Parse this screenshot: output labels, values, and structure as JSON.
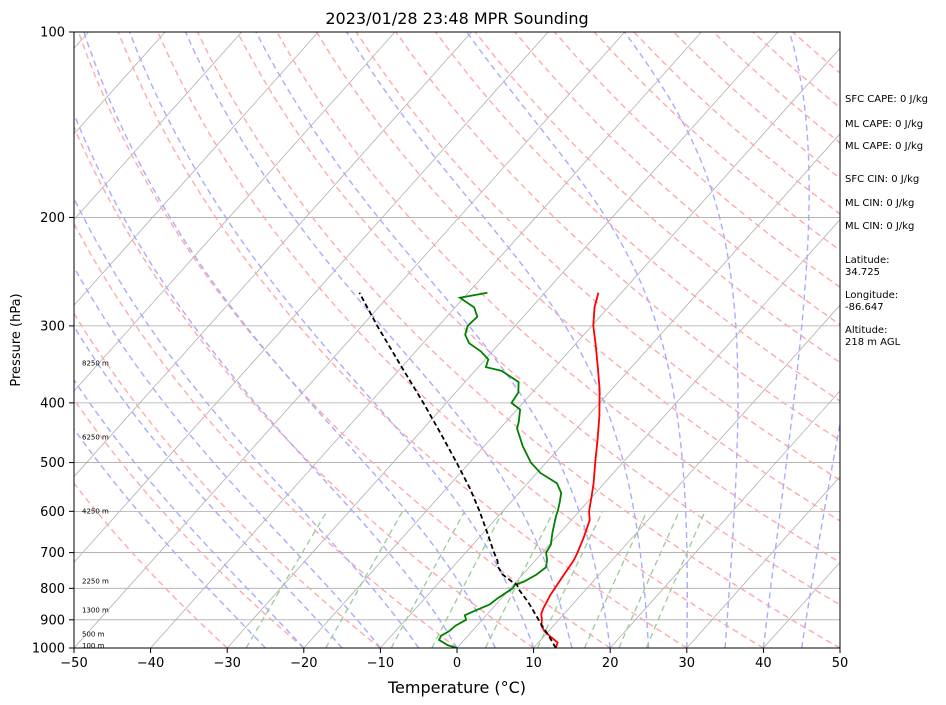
{
  "chart_data": {
    "type": "line",
    "subtype": "skew-t log-p sounding",
    "title": "2023/01/28 23:48 MPR Sounding",
    "xlabel": "Temperature (°C)",
    "ylabel": "Pressure (hPa)",
    "xlim": [
      -50,
      50
    ],
    "ylim": [
      1000,
      100
    ],
    "y_scale": "log",
    "x_ticks": [
      "−50",
      "−40",
      "−30",
      "−20",
      "−10",
      "0",
      "10",
      "20",
      "30",
      "40",
      "50"
    ],
    "y_ticks": [
      "100",
      "200",
      "300",
      "400",
      "500",
      "600",
      "700",
      "800",
      "900",
      "1000"
    ],
    "height_labels": [
      {
        "label": "100 m",
        "p": 993
      },
      {
        "label": "500 m",
        "p": 950
      },
      {
        "label": "1300 m",
        "p": 870
      },
      {
        "label": "2250 m",
        "p": 780
      },
      {
        "label": "4250 m",
        "p": 600
      },
      {
        "label": "6250 m",
        "p": 455
      },
      {
        "label": "8250 m",
        "p": 345
      }
    ],
    "series": [
      {
        "color": "#ff0000",
        "points": [
          [
            1000,
            12.9
          ],
          [
            980,
            12.5
          ],
          [
            960,
            11.0
          ],
          [
            940,
            9.5
          ],
          [
            920,
            8.4
          ],
          [
            900,
            7.8
          ],
          [
            880,
            7.0
          ],
          [
            860,
            6.6
          ],
          [
            840,
            6.3
          ],
          [
            820,
            6.0
          ],
          [
            800,
            5.8
          ],
          [
            760,
            5.4
          ],
          [
            720,
            5.0
          ],
          [
            700,
            4.6
          ],
          [
            660,
            3.6
          ],
          [
            620,
            2.4
          ],
          [
            600,
            1.3
          ],
          [
            570,
            0
          ],
          [
            540,
            -1.4
          ],
          [
            500,
            -3.6
          ],
          [
            460,
            -5.9
          ],
          [
            420,
            -8.5
          ],
          [
            380,
            -11.6
          ],
          [
            350,
            -14.4
          ],
          [
            320,
            -17.5
          ],
          [
            300,
            -19.8
          ],
          [
            280,
            -21.8
          ],
          [
            265,
            -23.0
          ]
        ]
      },
      {
        "color": "#008000",
        "points": [
          [
            1000,
            0
          ],
          [
            990,
            -1.5
          ],
          [
            970,
            -3.3
          ],
          [
            955,
            -3.5
          ],
          [
            940,
            -3.0
          ],
          [
            920,
            -2.8
          ],
          [
            900,
            -2.1
          ],
          [
            885,
            -2.8
          ],
          [
            870,
            -2.0
          ],
          [
            850,
            -0.8
          ],
          [
            830,
            -0.5
          ],
          [
            800,
            0.3
          ],
          [
            790,
            0.2
          ],
          [
            780,
            1.0
          ],
          [
            760,
            1.8
          ],
          [
            740,
            2.2
          ],
          [
            720,
            1.5
          ],
          [
            700,
            0.5
          ],
          [
            680,
            0.2
          ],
          [
            650,
            -1.0
          ],
          [
            610,
            -2.5
          ],
          [
            600,
            -2.8
          ],
          [
            580,
            -3.6
          ],
          [
            560,
            -4.5
          ],
          [
            540,
            -6.2
          ],
          [
            520,
            -9.5
          ],
          [
            500,
            -12.0
          ],
          [
            470,
            -15.0
          ],
          [
            440,
            -17.8
          ],
          [
            430,
            -18.3
          ],
          [
            410,
            -19.6
          ],
          [
            400,
            -21.5
          ],
          [
            385,
            -21.8
          ],
          [
            370,
            -23.0
          ],
          [
            355,
            -26.5
          ],
          [
            350,
            -29.0
          ],
          [
            340,
            -29.6
          ],
          [
            330,
            -31.5
          ],
          [
            320,
            -34.0
          ],
          [
            310,
            -35.5
          ],
          [
            300,
            -36.2
          ],
          [
            290,
            -36.0
          ],
          [
            280,
            -37.5
          ],
          [
            270,
            -40.5
          ],
          [
            265,
            -37.5
          ]
        ]
      },
      {
        "color": "#000000",
        "dashed": true,
        "points": [
          [
            1000,
            12.9
          ],
          [
            960,
            10.8
          ],
          [
            920,
            8.5
          ],
          [
            880,
            6.2
          ],
          [
            840,
            3.8
          ],
          [
            820,
            2.4
          ],
          [
            800,
            1.0
          ],
          [
            790,
            0.5
          ],
          [
            780,
            -0.6
          ],
          [
            760,
            -2.6
          ],
          [
            740,
            -4.0
          ],
          [
            720,
            -5.0
          ],
          [
            700,
            -6.3
          ],
          [
            650,
            -9.5
          ],
          [
            600,
            -13.0
          ],
          [
            550,
            -17.0
          ],
          [
            500,
            -21.7
          ],
          [
            450,
            -27.0
          ],
          [
            400,
            -33.0
          ],
          [
            350,
            -40.0
          ],
          [
            300,
            -48.0
          ],
          [
            265,
            -54.2
          ]
        ]
      }
    ],
    "annotations": [
      "SFC CAPE: 0 J/kg",
      "ML CAPE: 0 J/kg",
      "ML CAPE: 0 J/kg",
      "SFC CIN: 0 J/kg",
      "ML CIN: 0 J/kg",
      "ML CIN: 0 J/kg",
      "Latitude:\n34.725",
      "Longitude:\n-86.647",
      "Altitude:\n218 m AGL"
    ],
    "colors": {
      "isotherm": "#b0b0b0",
      "isobar": "#aaaaaa",
      "dry_adiabat": "#ffaaaa",
      "moist_adiabat": "#aaaaff",
      "mixing_ratio": "#99cc99"
    }
  }
}
